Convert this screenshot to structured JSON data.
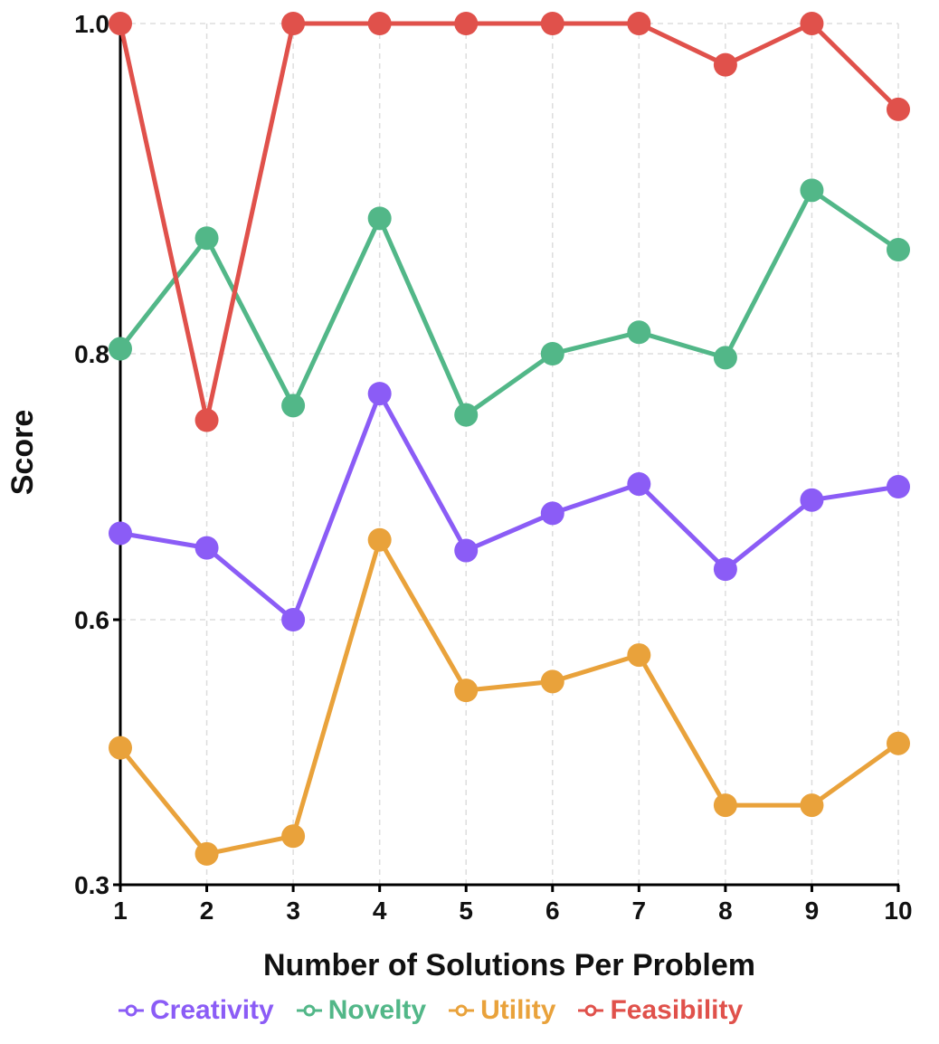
{
  "chart_data": {
    "type": "line",
    "xlabel": "Number of Solutions Per Problem",
    "ylabel": "Score",
    "x": [
      1,
      2,
      3,
      4,
      5,
      6,
      7,
      8,
      9,
      10
    ],
    "xticks": [
      "1",
      "2",
      "3",
      "4",
      "5",
      "6",
      "7",
      "8",
      "9",
      "10"
    ],
    "yticks": [
      {
        "value": 1.0,
        "label": "1.0"
      },
      {
        "value": 0.8,
        "label": "0.8"
      },
      {
        "value": 0.6,
        "label": "0.6"
      },
      {
        "value": 0.3,
        "label": "0.3"
      }
    ],
    "grid": true,
    "legend_position": "bottom",
    "series": [
      {
        "name": "Creativity",
        "color": "#8b5cf6",
        "values": [
          0.665,
          0.654,
          0.6,
          0.77,
          0.652,
          0.68,
          0.702,
          0.638,
          0.69,
          0.7
        ]
      },
      {
        "name": "Novelty",
        "color": "#52b788",
        "values": [
          0.803,
          0.87,
          0.761,
          0.882,
          0.754,
          0.8,
          0.813,
          0.797,
          0.899,
          0.863
        ]
      },
      {
        "name": "Utility",
        "color": "#e9a23b",
        "values": [
          0.455,
          0.335,
          0.355,
          0.66,
          0.52,
          0.53,
          0.56,
          0.39,
          0.39,
          0.46
        ]
      },
      {
        "name": "Feasibility",
        "color": "#e0514b",
        "values": [
          1.0,
          0.75,
          1.0,
          1.0,
          1.0,
          1.0,
          1.0,
          0.975,
          1.0,
          0.948
        ]
      }
    ]
  }
}
